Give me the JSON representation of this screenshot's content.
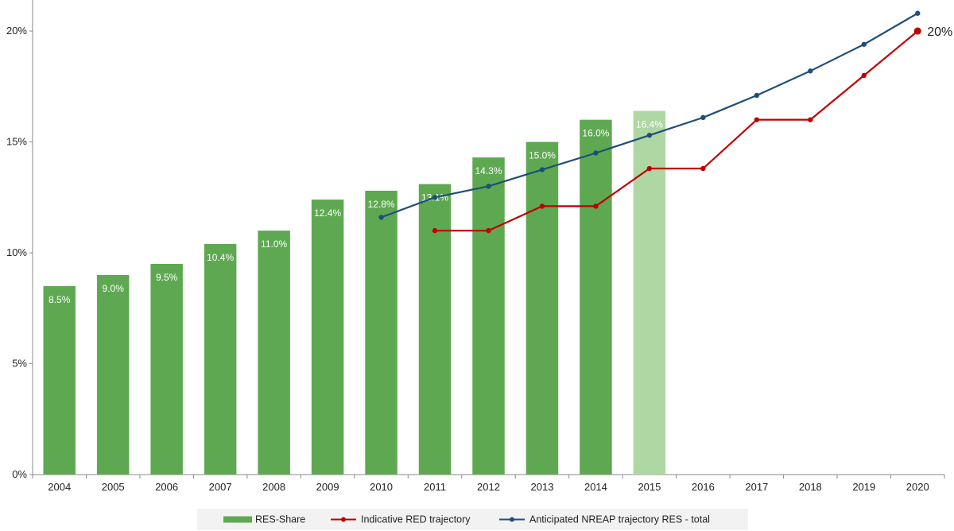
{
  "chart_data": {
    "type": "bar",
    "categories": [
      "2004",
      "2005",
      "2006",
      "2007",
      "2008",
      "2009",
      "2010",
      "2011",
      "2012",
      "2013",
      "2014",
      "2015",
      "2016",
      "2017",
      "2018",
      "2019",
      "2020"
    ],
    "ylim": [
      0,
      21.4
    ],
    "yticks": [
      0,
      5,
      10,
      15,
      20
    ],
    "ytick_labels": [
      "0%",
      "5%",
      "10%",
      "15%",
      "20%"
    ],
    "grid": false,
    "legend_position": "bottom",
    "series": [
      {
        "name": "RES-Share",
        "kind": "bar",
        "color": "#5fa852",
        "highlight_color": "#aed7a3",
        "values": [
          8.5,
          9.0,
          9.5,
          10.4,
          11.0,
          12.4,
          12.8,
          13.1,
          14.3,
          15.0,
          16.0,
          16.4,
          null,
          null,
          null,
          null,
          null
        ],
        "highlight": [
          false,
          false,
          false,
          false,
          false,
          false,
          false,
          false,
          false,
          false,
          false,
          true,
          false,
          false,
          false,
          false,
          false
        ],
        "labels": [
          "8.5%",
          "9.0%",
          "9.5%",
          "10.4%",
          "11.0%",
          "12.4%",
          "12.8%",
          "13.1%",
          "14.3%",
          "15.0%",
          "16.0%",
          "16.4%",
          null,
          null,
          null,
          null,
          null
        ]
      },
      {
        "name": "Indicative RED trajectory",
        "kind": "line",
        "color": "#c00000",
        "values": [
          null,
          null,
          null,
          null,
          null,
          null,
          null,
          11.0,
          11.0,
          12.1,
          12.1,
          13.8,
          13.8,
          16.0,
          16.0,
          18.0,
          20.0
        ]
      },
      {
        "name": "Anticipated NREAP trajectory RES - total",
        "kind": "line",
        "color": "#1f4e79",
        "values": [
          null,
          null,
          null,
          null,
          null,
          null,
          11.6,
          12.5,
          13.0,
          13.75,
          14.5,
          15.3,
          16.1,
          17.1,
          18.2,
          19.4,
          20.8
        ]
      }
    ],
    "annotations": [
      {
        "text": "20%",
        "category": "2020",
        "value": 20.0
      }
    ]
  }
}
